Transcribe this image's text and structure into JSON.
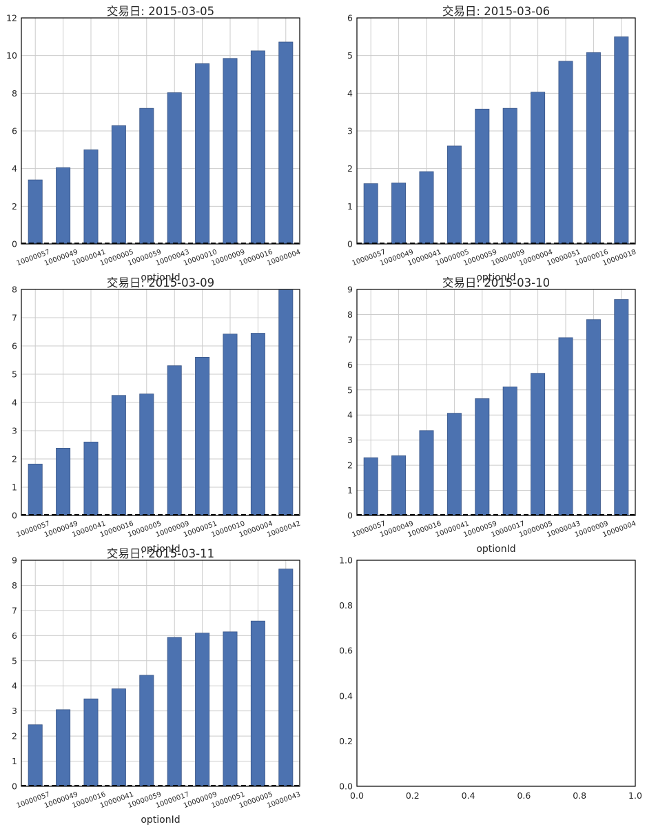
{
  "chart_data": [
    {
      "type": "bar",
      "title": "交易日: 2015-03-05",
      "xlabel": "optionId",
      "ylabel": "",
      "ylim": [
        0,
        12
      ],
      "yticks": [
        0,
        2,
        4,
        6,
        8,
        10,
        12
      ],
      "categories": [
        "10000057",
        "10000049",
        "10000041",
        "10000005",
        "10000059",
        "10000043",
        "10000010",
        "10000009",
        "10000016",
        "10000004"
      ],
      "values": [
        3.4,
        4.05,
        5.0,
        6.28,
        7.2,
        8.03,
        9.57,
        9.85,
        10.25,
        10.72
      ],
      "color": "#4c72b0",
      "reference_line": 0,
      "grid": true
    },
    {
      "type": "bar",
      "title": "交易日: 2015-03-06",
      "xlabel": "optionId",
      "ylabel": "",
      "ylim": [
        0,
        6
      ],
      "yticks": [
        0,
        1,
        2,
        3,
        4,
        5,
        6
      ],
      "categories": [
        "10000057",
        "10000049",
        "10000041",
        "10000005",
        "10000059",
        "10000009",
        "10000004",
        "10000051",
        "10000016",
        "10000018"
      ],
      "values": [
        1.6,
        1.62,
        1.92,
        2.6,
        3.58,
        3.6,
        4.03,
        4.85,
        5.08,
        5.5
      ],
      "color": "#4c72b0",
      "reference_line": 0,
      "grid": true
    },
    {
      "type": "bar",
      "title": "交易日: 2015-03-09",
      "xlabel": "optionId",
      "ylabel": "",
      "ylim": [
        0,
        8
      ],
      "yticks": [
        0,
        1,
        2,
        3,
        4,
        5,
        6,
        7,
        8
      ],
      "categories": [
        "10000057",
        "10000049",
        "10000041",
        "10000016",
        "10000005",
        "10000009",
        "10000051",
        "10000010",
        "10000004",
        "10000042"
      ],
      "values": [
        1.82,
        2.38,
        2.6,
        4.25,
        4.3,
        5.3,
        5.6,
        6.42,
        6.45,
        8.0
      ],
      "color": "#4c72b0",
      "reference_line": 0,
      "grid": true
    },
    {
      "type": "bar",
      "title": "交易日: 2015-03-10",
      "xlabel": "optionId",
      "ylabel": "",
      "ylim": [
        0,
        9
      ],
      "yticks": [
        0,
        1,
        2,
        3,
        4,
        5,
        6,
        7,
        8,
        9
      ],
      "categories": [
        "10000057",
        "10000049",
        "10000016",
        "10000041",
        "10000059",
        "10000017",
        "10000005",
        "10000043",
        "10000009",
        "10000004"
      ],
      "values": [
        2.3,
        2.38,
        3.38,
        4.07,
        4.65,
        5.12,
        5.66,
        7.08,
        7.8,
        8.6
      ],
      "color": "#4c72b0",
      "reference_line": 0,
      "grid": true
    },
    {
      "type": "bar",
      "title": "交易日: 2015-03-11",
      "xlabel": "optionId",
      "ylabel": "",
      "ylim": [
        0,
        9
      ],
      "yticks": [
        0,
        1,
        2,
        3,
        4,
        5,
        6,
        7,
        8,
        9
      ],
      "categories": [
        "10000057",
        "10000049",
        "10000016",
        "10000041",
        "10000059",
        "10000017",
        "10000009",
        "10000051",
        "10000005",
        "10000043"
      ],
      "values": [
        2.45,
        3.05,
        3.48,
        3.88,
        4.42,
        5.93,
        6.1,
        6.15,
        6.58,
        8.65
      ],
      "color": "#4c72b0",
      "reference_line": 0,
      "grid": true
    },
    {
      "type": "empty",
      "title": "",
      "xlabel": "",
      "ylabel": "",
      "xlim": [
        0,
        1
      ],
      "ylim": [
        0,
        1
      ],
      "xticks": [
        "0.0",
        "0.2",
        "0.4",
        "0.6",
        "0.8",
        "1.0"
      ],
      "yticks": [
        "0.0",
        "0.2",
        "0.4",
        "0.6",
        "0.8",
        "1.0"
      ],
      "grid": false
    }
  ]
}
